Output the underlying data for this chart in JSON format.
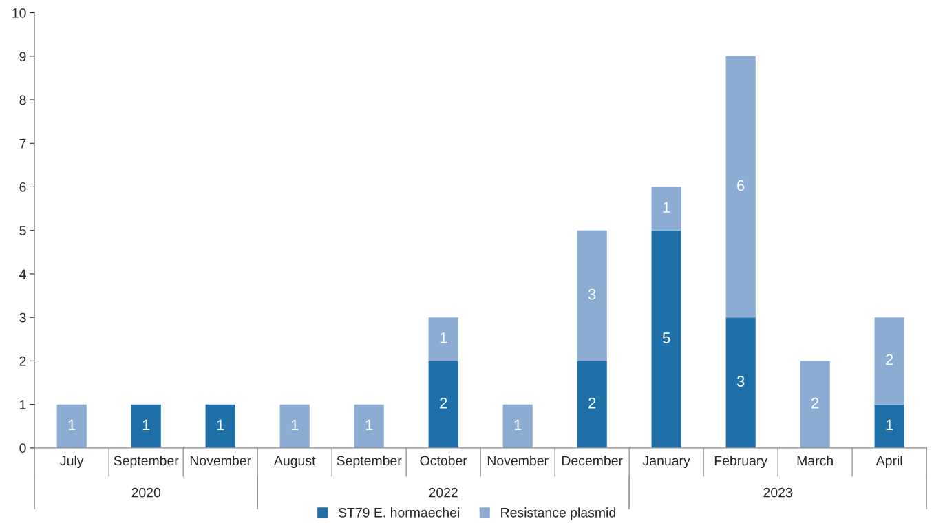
{
  "chart_data": {
    "type": "bar",
    "stacked": true,
    "categories": [
      "July",
      "September",
      "November",
      "August",
      "September",
      "October",
      "November",
      "December",
      "January",
      "February",
      "March",
      "April"
    ],
    "series": [
      {
        "name": "ST79 E. hormaechei",
        "color": "#1f70a9",
        "values": [
          null,
          1,
          1,
          null,
          null,
          2,
          null,
          2,
          5,
          3,
          null,
          1
        ]
      },
      {
        "name": "Resistance plasmid",
        "color": "#8cacd3",
        "values": [
          1,
          null,
          null,
          1,
          1,
          1,
          1,
          3,
          1,
          6,
          2,
          2
        ]
      }
    ],
    "ylim": [
      0,
      10
    ],
    "yticks": [
      0,
      1,
      2,
      3,
      4,
      5,
      6,
      7,
      8,
      9,
      10
    ],
    "grid": false,
    "legend": "bottom",
    "data_labels": true,
    "annotations": [
      "2020",
      "2022",
      "2023"
    ]
  }
}
